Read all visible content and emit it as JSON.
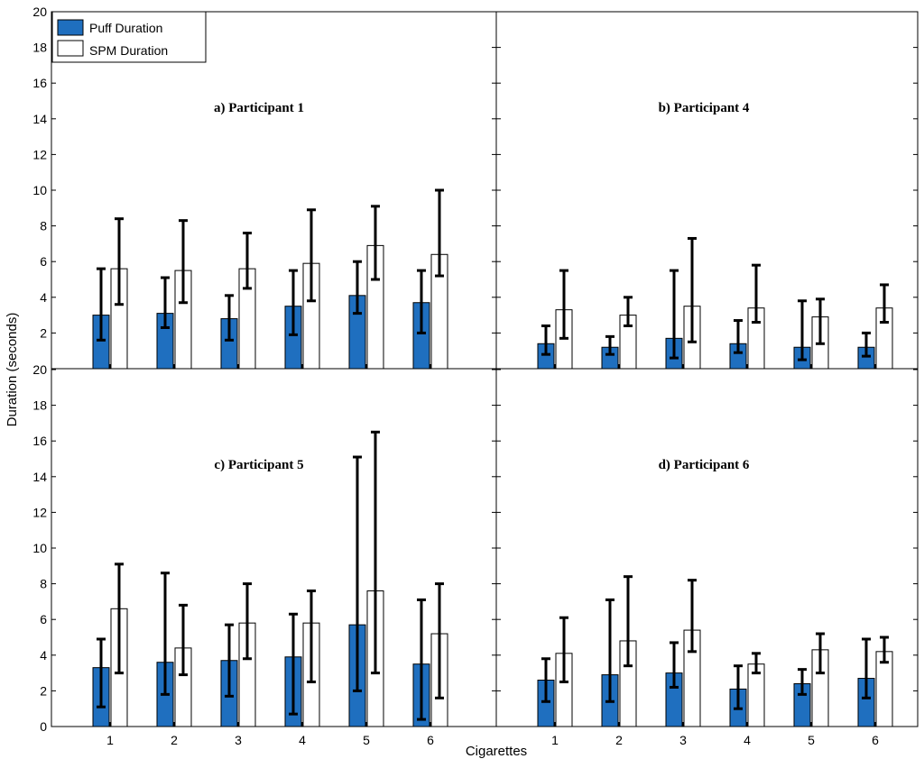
{
  "colors": {
    "puff": "#1f6fbf",
    "spm": "#ffffff",
    "edge": "#000000"
  },
  "chart_data": {
    "type": "bar",
    "xlabel": "Cigarettes",
    "ylabel": "Duration (seconds)",
    "ylim": [
      0,
      20
    ],
    "yticks_top": [
      "2",
      "4",
      "6",
      "8",
      "10",
      "12",
      "14",
      "16",
      "18",
      "20"
    ],
    "yticks_bottom": [
      "0",
      "2",
      "4",
      "6",
      "8",
      "10",
      "12",
      "14",
      "16",
      "18",
      "20"
    ],
    "categories": [
      "1",
      "2",
      "3",
      "4",
      "5",
      "6"
    ],
    "legend": [
      "Puff Duration",
      "SPM Duration"
    ],
    "panels": [
      {
        "title": "a) Participant 1",
        "puff": {
          "values": [
            3.0,
            3.1,
            2.8,
            3.5,
            4.1,
            3.7
          ],
          "lo": [
            1.6,
            2.3,
            1.6,
            1.9,
            3.1,
            2.0
          ],
          "hi": [
            5.6,
            5.1,
            4.1,
            5.5,
            6.0,
            5.5
          ]
        },
        "spm": {
          "values": [
            5.6,
            5.5,
            5.6,
            5.9,
            6.9,
            6.4
          ],
          "lo": [
            3.6,
            3.7,
            4.5,
            3.8,
            5.0,
            5.2
          ],
          "hi": [
            8.4,
            8.3,
            7.6,
            8.9,
            9.1,
            10.0
          ]
        }
      },
      {
        "title": "b) Participant 4",
        "puff": {
          "values": [
            1.4,
            1.2,
            1.7,
            1.4,
            1.2,
            1.2
          ],
          "lo": [
            0.8,
            0.8,
            0.6,
            0.9,
            0.5,
            0.7
          ],
          "hi": [
            2.4,
            1.8,
            5.5,
            2.7,
            3.8,
            2.0
          ]
        },
        "spm": {
          "values": [
            3.3,
            3.0,
            3.5,
            3.4,
            2.9,
            3.4
          ],
          "lo": [
            1.7,
            2.4,
            1.5,
            2.6,
            1.4,
            2.6
          ],
          "hi": [
            5.5,
            4.0,
            7.3,
            5.8,
            3.9,
            4.7
          ]
        }
      },
      {
        "title": "c) Participant 5",
        "puff": {
          "values": [
            3.3,
            3.6,
            3.7,
            3.9,
            5.7,
            3.5
          ],
          "lo": [
            1.1,
            1.8,
            1.7,
            0.7,
            2.0,
            0.4
          ],
          "hi": [
            4.9,
            8.6,
            5.7,
            6.3,
            15.1,
            7.1
          ]
        },
        "spm": {
          "values": [
            6.6,
            4.4,
            5.8,
            5.8,
            7.6,
            5.2
          ],
          "lo": [
            3.0,
            2.9,
            3.8,
            2.5,
            3.0,
            1.6
          ],
          "hi": [
            9.1,
            6.8,
            8.0,
            7.6,
            16.5,
            8.0
          ]
        }
      },
      {
        "title": "d) Participant 6",
        "puff": {
          "values": [
            2.6,
            2.9,
            3.0,
            2.1,
            2.4,
            2.7
          ],
          "lo": [
            1.4,
            1.4,
            2.2,
            1.0,
            1.8,
            1.6
          ],
          "hi": [
            3.8,
            7.1,
            4.7,
            3.4,
            3.2,
            4.9
          ]
        },
        "spm": {
          "values": [
            4.1,
            4.8,
            5.4,
            3.5,
            4.3,
            4.2
          ],
          "lo": [
            2.5,
            3.4,
            4.2,
            3.0,
            3.0,
            3.6
          ],
          "hi": [
            6.1,
            8.4,
            8.2,
            4.1,
            5.2,
            5.0
          ]
        }
      }
    ]
  }
}
